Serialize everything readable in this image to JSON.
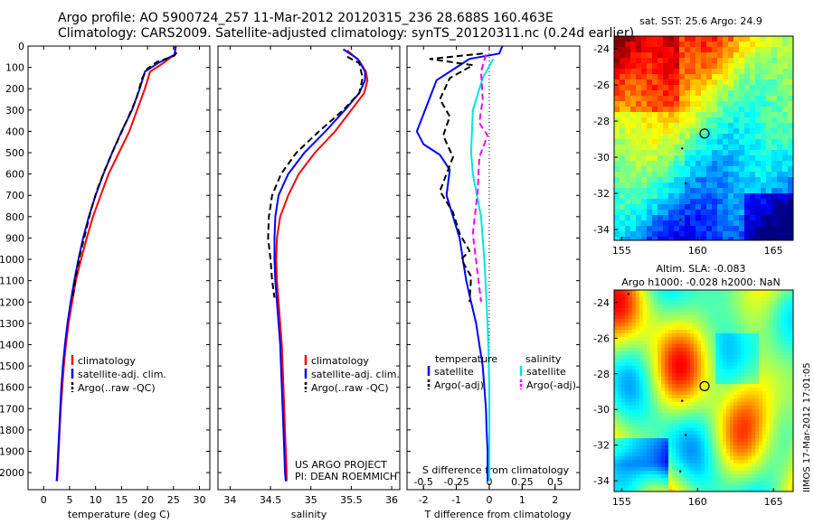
{
  "header": {
    "line1": "Argo profile: AO 5900724_257 11-Mar-2012 20120315_236 28.688S 160.463E",
    "line2": "Climatology: CARS2009. Satellite-adjusted climatology: synTS_20120311.nc (0.24d earlier)"
  },
  "side_label": "IIMOS 17-Mar-2012 17:01:05",
  "project": {
    "line1": "US ARGO PROJECT",
    "line2": "PI: DEAN ROEMMICH"
  },
  "colors": {
    "climatology": "#ff0000",
    "satellite": "#0000ff",
    "argo": "#000000",
    "sal_satellite": "#00e5e5",
    "sal_argo": "#ff00ff"
  },
  "depth_ticks": [
    "0",
    "100",
    "200",
    "300",
    "400",
    "500",
    "600",
    "700",
    "800",
    "900",
    "1000",
    "1100",
    "1200",
    "1300",
    "1400",
    "1500",
    "1600",
    "1700",
    "1800",
    "1900",
    "2000"
  ],
  "legends": {
    "temp": [
      "climatology",
      "satellite-adj. clim.",
      "Argo(..raw -QC)"
    ],
    "sal": [
      "climatology",
      "satellite-adj. clim.",
      "Argo(..raw -QC)"
    ],
    "diff_temp_title": "temperature",
    "diff_sal_title": "salinity",
    "diff_temp": [
      "satellite",
      "Argo(-adj)"
    ],
    "diff_sal": [
      "satellite",
      "Argo(-adj)"
    ]
  },
  "chart_data": [
    {
      "type": "line",
      "id": "temperature",
      "xlabel": "temperature (deg C)",
      "xticks": [
        "0",
        "5",
        "10",
        "15",
        "20",
        "25",
        "30"
      ],
      "xlim": [
        -3,
        32
      ],
      "ylim": [
        0,
        2080
      ],
      "series": [
        {
          "name": "climatology",
          "style": "solid",
          "color": "#ff0000",
          "points": [
            [
              25.5,
              0
            ],
            [
              25.2,
              40
            ],
            [
              23,
              80
            ],
            [
              20.5,
              120
            ],
            [
              19.5,
              200
            ],
            [
              18,
              300
            ],
            [
              16.5,
              400
            ],
            [
              14.5,
              500
            ],
            [
              12.5,
              600
            ],
            [
              11,
              700
            ],
            [
              9.5,
              800
            ],
            [
              8.3,
              900
            ],
            [
              7.2,
              1000
            ],
            [
              6.2,
              1100
            ],
            [
              5.5,
              1200
            ],
            [
              4.8,
              1300
            ],
            [
              4.3,
              1400
            ],
            [
              3.9,
              1500
            ],
            [
              3.6,
              1600
            ],
            [
              3.3,
              1700
            ],
            [
              3.1,
              1800
            ],
            [
              2.9,
              1900
            ],
            [
              2.7,
              2000
            ],
            [
              2.6,
              2040
            ]
          ]
        },
        {
          "name": "satellite-adj. clim.",
          "style": "solid",
          "color": "#0000ff",
          "points": [
            [
              25.3,
              0
            ],
            [
              25.3,
              40
            ],
            [
              22,
              80
            ],
            [
              19.5,
              120
            ],
            [
              18.5,
              200
            ],
            [
              17,
              300
            ],
            [
              15,
              400
            ],
            [
              13.2,
              500
            ],
            [
              11.5,
              600
            ],
            [
              10,
              700
            ],
            [
              8.7,
              800
            ],
            [
              7.6,
              900
            ],
            [
              6.7,
              1000
            ],
            [
              5.9,
              1100
            ],
            [
              5.2,
              1200
            ],
            [
              4.6,
              1300
            ],
            [
              4.1,
              1400
            ],
            [
              3.7,
              1500
            ],
            [
              3.4,
              1600
            ],
            [
              3.2,
              1700
            ],
            [
              3.0,
              1800
            ],
            [
              2.8,
              1900
            ],
            [
              2.6,
              2000
            ],
            [
              2.5,
              2040
            ]
          ]
        },
        {
          "name": "Argo(..raw -QC)",
          "style": "dashed",
          "color": "#000000",
          "points": [
            [
              25.6,
              30
            ],
            [
              25.2,
              45
            ],
            [
              21.8,
              75
            ],
            [
              20,
              105
            ],
            [
              19,
              150
            ],
            [
              17.8,
              250
            ],
            [
              16,
              350
            ],
            [
              14.5,
              430
            ],
            [
              13.2,
              500
            ],
            [
              11.8,
              580
            ],
            [
              10.2,
              680
            ],
            [
              9,
              780
            ],
            [
              8,
              880
            ],
            [
              7,
              980
            ],
            [
              6.2,
              1080
            ],
            [
              5.6,
              1180
            ]
          ]
        }
      ]
    },
    {
      "type": "line",
      "id": "salinity",
      "xlabel": "salinity",
      "xticks": [
        "34",
        "34.5",
        "35",
        "35.5",
        "36"
      ],
      "xlim": [
        33.85,
        36.1
      ],
      "ylim": [
        0,
        2080
      ],
      "series": [
        {
          "name": "climatology",
          "style": "solid",
          "color": "#ff0000",
          "points": [
            [
              35.45,
              20
            ],
            [
              35.6,
              70
            ],
            [
              35.68,
              120
            ],
            [
              35.7,
              160
            ],
            [
              35.66,
              220
            ],
            [
              35.5,
              300
            ],
            [
              35.3,
              400
            ],
            [
              35.05,
              500
            ],
            [
              34.85,
              600
            ],
            [
              34.72,
              700
            ],
            [
              34.62,
              800
            ],
            [
              34.58,
              900
            ],
            [
              34.57,
              1000
            ],
            [
              34.58,
              1100
            ],
            [
              34.6,
              1200
            ],
            [
              34.62,
              1300
            ],
            [
              34.64,
              1400
            ],
            [
              34.65,
              1500
            ],
            [
              34.66,
              1600
            ],
            [
              34.67,
              1700
            ],
            [
              34.68,
              1800
            ],
            [
              34.69,
              1900
            ],
            [
              34.7,
              2000
            ],
            [
              34.7,
              2040
            ]
          ]
        },
        {
          "name": "satellite-adj. clim.",
          "style": "solid",
          "color": "#0000ff",
          "points": [
            [
              35.4,
              15
            ],
            [
              35.58,
              60
            ],
            [
              35.67,
              120
            ],
            [
              35.67,
              160
            ],
            [
              35.6,
              220
            ],
            [
              35.42,
              300
            ],
            [
              35.18,
              400
            ],
            [
              34.92,
              500
            ],
            [
              34.72,
              600
            ],
            [
              34.6,
              700
            ],
            [
              34.56,
              800
            ],
            [
              34.55,
              900
            ],
            [
              34.55,
              1000
            ],
            [
              34.56,
              1100
            ],
            [
              34.58,
              1200
            ],
            [
              34.6,
              1300
            ],
            [
              34.62,
              1400
            ],
            [
              34.63,
              1500
            ],
            [
              34.64,
              1600
            ],
            [
              34.65,
              1700
            ],
            [
              34.66,
              1800
            ],
            [
              34.67,
              1900
            ],
            [
              34.68,
              2000
            ],
            [
              34.69,
              2040
            ]
          ]
        },
        {
          "name": "Argo(..raw -QC)",
          "style": "dashed",
          "color": "#000000",
          "points": [
            [
              35.45,
              50
            ],
            [
              35.6,
              80
            ],
            [
              35.64,
              150
            ],
            [
              35.6,
              220
            ],
            [
              35.4,
              300
            ],
            [
              35.1,
              400
            ],
            [
              34.82,
              500
            ],
            [
              34.63,
              600
            ],
            [
              34.52,
              700
            ],
            [
              34.48,
              800
            ],
            [
              34.47,
              900
            ],
            [
              34.5,
              1000
            ],
            [
              34.52,
              1100
            ],
            [
              34.55,
              1180
            ]
          ]
        }
      ]
    },
    {
      "type": "line",
      "id": "difference",
      "xlabel": "T difference from climatology",
      "xlabel_top": "S difference from climatology",
      "xticks": [
        "-2",
        "-1",
        "0",
        "1",
        "2"
      ],
      "xticks_top": [
        "-0.5",
        "-0.25",
        "0",
        "0.25",
        "0.5"
      ],
      "xlim": [
        -2.5,
        2.75
      ],
      "ylim": [
        0,
        2080
      ],
      "series": [
        {
          "name": "temperature satellite",
          "style": "solid",
          "color": "#0000ff",
          "points": [
            [
              0.4,
              0
            ],
            [
              0.3,
              35
            ],
            [
              -0.6,
              60
            ],
            [
              -1.1,
              110
            ],
            [
              -1.6,
              160
            ],
            [
              -1.9,
              280
            ],
            [
              -2.2,
              400
            ],
            [
              -2.0,
              460
            ],
            [
              -1.5,
              510
            ],
            [
              -1.2,
              580
            ],
            [
              -1.3,
              700
            ],
            [
              -1.1,
              800
            ],
            [
              -0.9,
              900
            ],
            [
              -0.8,
              1000
            ],
            [
              -0.7,
              1100
            ],
            [
              -0.55,
              1200
            ],
            [
              -0.4,
              1300
            ],
            [
              -0.3,
              1400
            ],
            [
              -0.2,
              1500
            ],
            [
              -0.15,
              1600
            ],
            [
              -0.1,
              1700
            ],
            [
              -0.08,
              1800
            ],
            [
              -0.05,
              1900
            ],
            [
              -0.05,
              2040
            ]
          ]
        },
        {
          "name": "temperature Argo(-adj)",
          "style": "dashed",
          "color": "#000000",
          "points": [
            [
              -0.2,
              35
            ],
            [
              -1.8,
              60
            ],
            [
              -0.5,
              90
            ],
            [
              -1.2,
              150
            ],
            [
              -1.5,
              250
            ],
            [
              -1.2,
              330
            ],
            [
              -1.4,
              420
            ],
            [
              -1.1,
              520
            ],
            [
              -1.5,
              680
            ],
            [
              -1.1,
              780
            ],
            [
              -0.9,
              880
            ],
            [
              -0.6,
              960
            ],
            [
              -0.85,
              1000
            ],
            [
              -0.55,
              1080
            ],
            [
              -0.6,
              1200
            ]
          ]
        },
        {
          "name": "salinity satellite",
          "style": "solid",
          "color": "#00e5e5",
          "points": [
            [
              0.12,
              60
            ],
            [
              -0.2,
              150
            ],
            [
              -0.5,
              300
            ],
            [
              -0.55,
              500
            ],
            [
              -0.5,
              600
            ],
            [
              -0.25,
              800
            ],
            [
              -0.15,
              1000
            ],
            [
              -0.08,
              1200
            ],
            [
              -0.03,
              1400
            ],
            [
              0.0,
              1600
            ],
            [
              0.0,
              1800
            ],
            [
              0.0,
              2040
            ]
          ]
        },
        {
          "name": "salinity Argo(-adj)",
          "style": "dashed",
          "color": "#ff00ff",
          "points": [
            [
              -0.1,
              40
            ],
            [
              -0.25,
              120
            ],
            [
              -0.2,
              250
            ],
            [
              -0.3,
              360
            ],
            [
              -0.05,
              420
            ],
            [
              -0.3,
              520
            ],
            [
              -0.35,
              680
            ],
            [
              -0.5,
              880
            ],
            [
              -0.25,
              1200
            ]
          ]
        }
      ]
    },
    {
      "type": "heatmap",
      "id": "sst_map",
      "title": "sat. SST: 25.6 Argo: 24.9",
      "xticks": [
        "155",
        "160",
        "165"
      ],
      "yticks": [
        "-24",
        "-26",
        "-28",
        "-30",
        "-32",
        "-34"
      ],
      "xlim": [
        154.5,
        166.3
      ],
      "ylim": [
        -34.6,
        -23.3
      ],
      "argo_position": [
        160.46,
        -28.69
      ]
    },
    {
      "type": "heatmap",
      "id": "sla_map",
      "title_line1": "Altim. SLA: -0.083",
      "title_line2": "Argo h1000: -0.028 h2000: NaN",
      "xticks": [
        "155",
        "160",
        "165"
      ],
      "yticks": [
        "-24",
        "-26",
        "-28",
        "-30",
        "-32",
        "-34"
      ],
      "xlim": [
        154.5,
        166.3
      ],
      "ylim": [
        -34.6,
        -23.3
      ],
      "argo_position": [
        160.46,
        -28.69
      ]
    }
  ]
}
